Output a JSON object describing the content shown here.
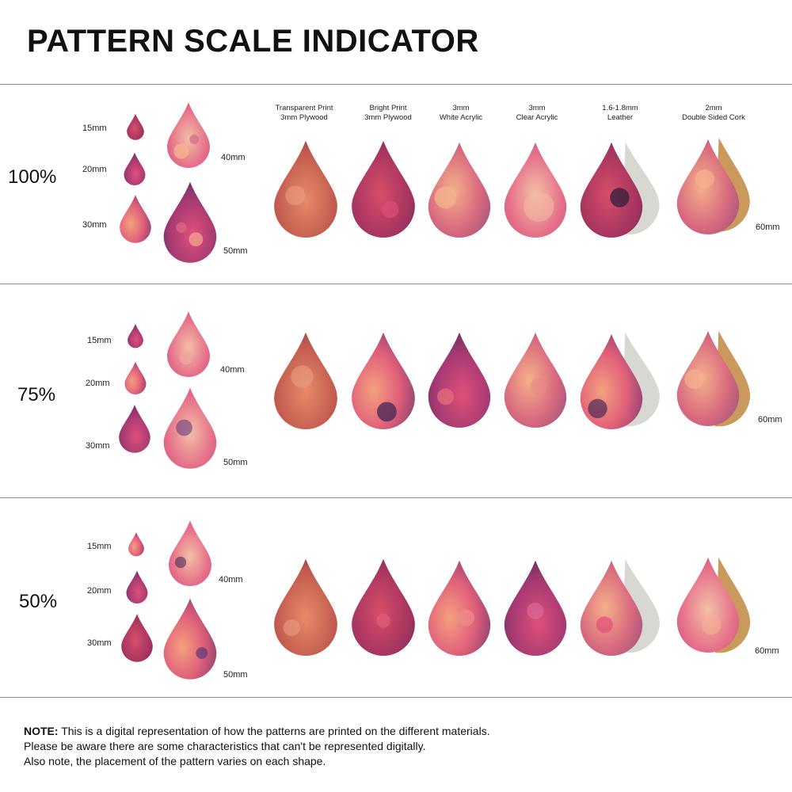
{
  "title": "PATTERN SCALE INDICATOR",
  "materials": [
    {
      "line1": "Transparent Print",
      "line2": "3mm Plywood"
    },
    {
      "line1": "Bright Print",
      "line2": "3mm Plywood"
    },
    {
      "line1": "3mm",
      "line2": "White Acrylic"
    },
    {
      "line1": "3mm",
      "line2": "Clear Acrylic"
    },
    {
      "line1": "1.6-1.8mm",
      "line2": "Leather"
    },
    {
      "line1": "2mm",
      "line2": "Double Sided Cork"
    }
  ],
  "sizes": [
    "15mm",
    "20mm",
    "30mm",
    "40mm",
    "50mm",
    "60mm"
  ],
  "scales": [
    "100%",
    "75%",
    "50%"
  ],
  "note": {
    "label": "NOTE:",
    "line1": " This is a digital representation of how the patterns are printed on the different materials.",
    "line2": "Please be aware there are some characteristics that can't be represented digitally.",
    "line3": "Also note, the placement of the pattern varies on each shape."
  },
  "colors": {
    "pink": "#e8557a",
    "magenta": "#b03a6e",
    "purple": "#6c3c78",
    "peach": "#f2a07a",
    "coral": "#e8604e",
    "leather_back": "#d9d9d4",
    "cork": "#c99a5c"
  }
}
